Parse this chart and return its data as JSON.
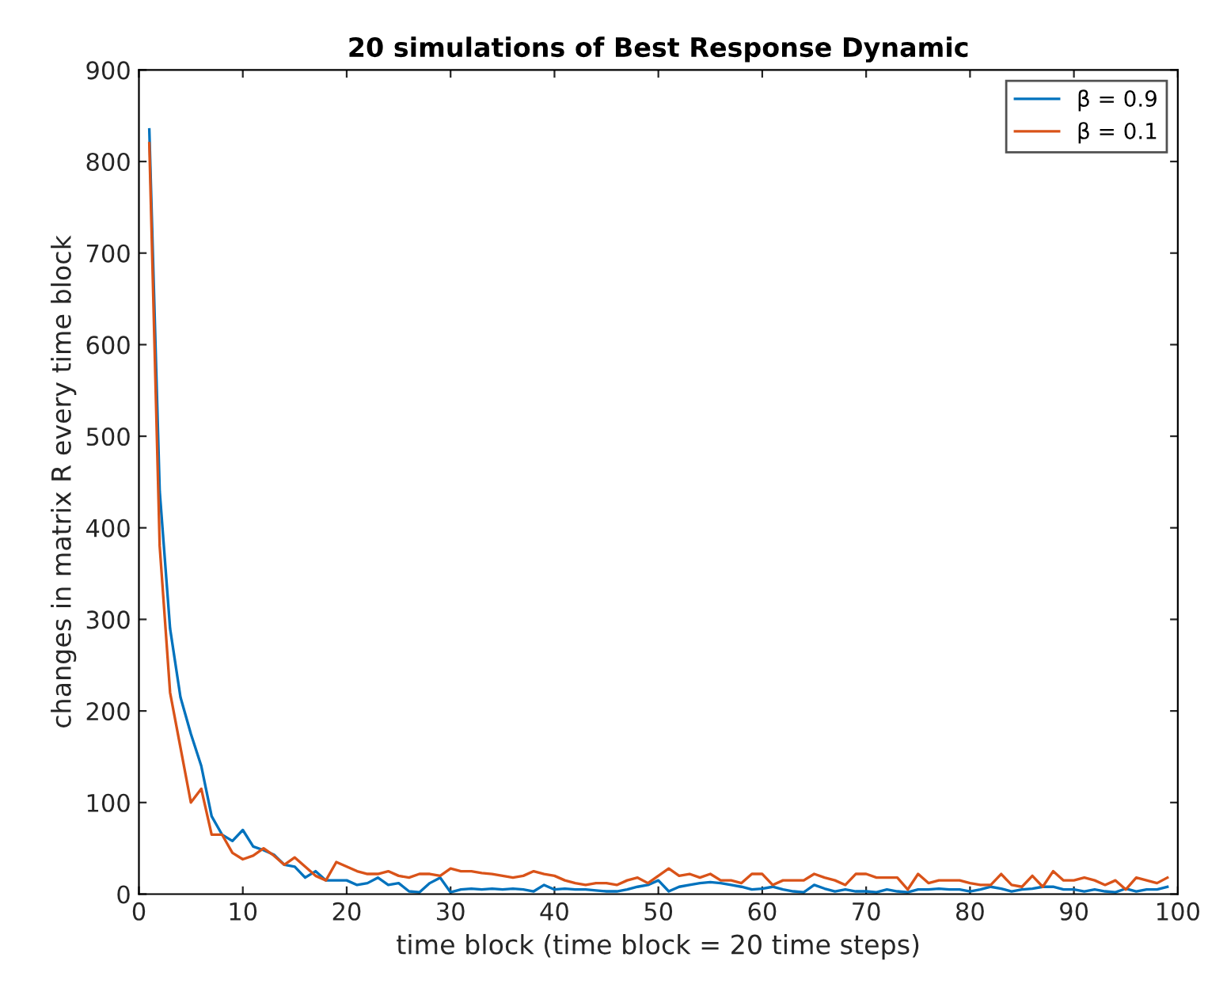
{
  "chart_data": {
    "type": "line",
    "title": "20 simulations of Best Response Dynamic",
    "xlabel": "time block (time block = 20 time steps)",
    "ylabel": "changes in matrix R every time block",
    "xlim": [
      0,
      100
    ],
    "xticks": [
      0,
      10,
      20,
      30,
      40,
      50,
      60,
      70,
      80,
      90,
      100
    ],
    "ylim": [
      0,
      900
    ],
    "yticks": [
      0,
      100,
      200,
      300,
      400,
      500,
      600,
      700,
      800,
      900
    ],
    "grid": false,
    "legend": "top right",
    "line_style": "solid",
    "marker": "none",
    "series": [
      {
        "name": "β = 0.9",
        "color": "#0072bd",
        "x": [
          1,
          2,
          3,
          4,
          5,
          6,
          7,
          8,
          9,
          10,
          11,
          12,
          13,
          14,
          15,
          16,
          17,
          18,
          19,
          20,
          21,
          22,
          23,
          24,
          25,
          26,
          27,
          28,
          29,
          30,
          31,
          32,
          33,
          34,
          35,
          36,
          37,
          38,
          39,
          40,
          41,
          42,
          43,
          44,
          45,
          46,
          47,
          48,
          49,
          50,
          51,
          52,
          53,
          54,
          55,
          56,
          57,
          58,
          59,
          60,
          61,
          62,
          63,
          64,
          65,
          66,
          67,
          68,
          69,
          70,
          71,
          72,
          73,
          74,
          75,
          76,
          77,
          78,
          79,
          80,
          81,
          82,
          83,
          84,
          85,
          86,
          87,
          88,
          89,
          90,
          91,
          92,
          93,
          94,
          95,
          96,
          97,
          98,
          99
        ],
        "values": [
          835,
          440,
          290,
          215,
          175,
          140,
          85,
          65,
          58,
          70,
          52,
          48,
          43,
          32,
          30,
          18,
          25,
          15,
          15,
          15,
          10,
          12,
          18,
          10,
          12,
          3,
          2,
          12,
          18,
          2,
          5,
          6,
          5,
          6,
          5,
          6,
          5,
          3,
          10,
          5,
          6,
          5,
          5,
          4,
          3,
          3,
          5,
          8,
          10,
          15,
          3,
          8,
          10,
          12,
          13,
          12,
          10,
          8,
          5,
          6,
          8,
          5,
          3,
          2,
          10,
          6,
          3,
          5,
          3,
          3,
          2,
          5,
          3,
          2,
          5,
          5,
          6,
          5,
          5,
          3,
          5,
          8,
          6,
          3,
          5,
          6,
          8,
          8,
          5,
          5,
          3,
          5,
          3,
          2,
          6,
          3,
          5,
          5,
          8
        ]
      },
      {
        "name": "β = 0.1",
        "color": "#d95319",
        "x": [
          1,
          2,
          3,
          4,
          5,
          6,
          7,
          8,
          9,
          10,
          11,
          12,
          13,
          14,
          15,
          16,
          17,
          18,
          19,
          20,
          21,
          22,
          23,
          24,
          25,
          26,
          27,
          28,
          29,
          30,
          31,
          32,
          33,
          34,
          35,
          36,
          37,
          38,
          39,
          40,
          41,
          42,
          43,
          44,
          45,
          46,
          47,
          48,
          49,
          50,
          51,
          52,
          53,
          54,
          55,
          56,
          57,
          58,
          59,
          60,
          61,
          62,
          63,
          64,
          65,
          66,
          67,
          68,
          69,
          70,
          71,
          72,
          73,
          74,
          75,
          76,
          77,
          78,
          79,
          80,
          81,
          82,
          83,
          84,
          85,
          86,
          87,
          88,
          89,
          90,
          91,
          92,
          93,
          94,
          95,
          96,
          97,
          98,
          99
        ],
        "values": [
          820,
          380,
          220,
          160,
          100,
          115,
          65,
          65,
          45,
          38,
          42,
          50,
          42,
          32,
          40,
          30,
          20,
          15,
          35,
          30,
          25,
          22,
          22,
          25,
          20,
          18,
          22,
          22,
          20,
          28,
          25,
          25,
          23,
          22,
          20,
          18,
          20,
          25,
          22,
          20,
          15,
          12,
          10,
          12,
          12,
          10,
          15,
          18,
          12,
          20,
          28,
          20,
          22,
          18,
          22,
          15,
          15,
          12,
          22,
          22,
          10,
          15,
          15,
          15,
          22,
          18,
          15,
          10,
          22,
          22,
          18,
          18,
          18,
          5,
          22,
          12,
          15,
          15,
          15,
          12,
          10,
          10,
          22,
          10,
          8,
          20,
          8,
          25,
          15,
          15,
          18,
          15,
          10,
          15,
          5,
          18,
          15,
          12,
          18
        ]
      }
    ]
  }
}
